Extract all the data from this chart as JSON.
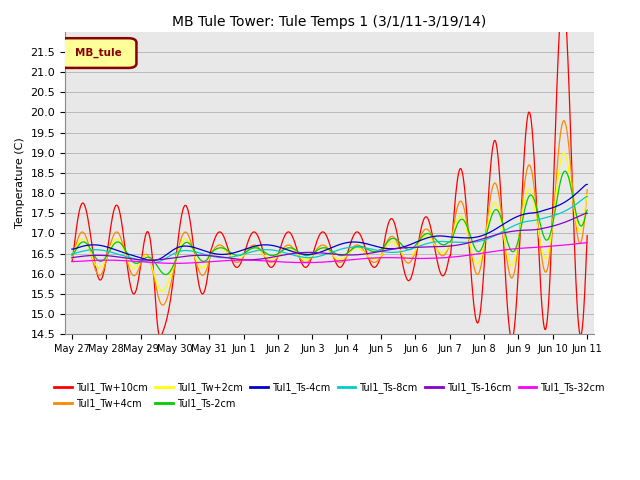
{
  "title": "MB Tule Tower: Tule Temps 1 (3/1/11-3/19/14)",
  "ylabel": "Temperature (C)",
  "ylim": [
    14.5,
    22.0
  ],
  "yticks": [
    14.5,
    15.0,
    15.5,
    16.0,
    16.5,
    17.0,
    17.5,
    18.0,
    18.5,
    19.0,
    19.5,
    20.0,
    20.5,
    21.0,
    21.5
  ],
  "legend_box_label": "MB_tule",
  "legend_box_color": "#880000",
  "legend_box_bg": "#ffff99",
  "xtick_labels": [
    "May 27",
    "May 28",
    "May 29",
    "May 30",
    "May 31",
    "Jun 1",
    "Jun 2",
    "Jun 3",
    "Jun 4",
    "Jun 5",
    "Jun 6",
    "Jun 7",
    "Jun 8",
    "Jun 9",
    "Jun 10",
    "Jun 11"
  ],
  "series": [
    {
      "label": "Tul1_Tw+10cm",
      "color": "#ff0000"
    },
    {
      "label": "Tul1_Tw+4cm",
      "color": "#ff8800"
    },
    {
      "label": "Tul1_Tw+2cm",
      "color": "#ffff00"
    },
    {
      "label": "Tul1_Ts-2cm",
      "color": "#00cc00"
    },
    {
      "label": "Tul1_Ts-4cm",
      "color": "#0000cc"
    },
    {
      "label": "Tul1_Ts-8cm",
      "color": "#00cccc"
    },
    {
      "label": "Tul1_Ts-16cm",
      "color": "#8800cc"
    },
    {
      "label": "Tul1_Ts-32cm",
      "color": "#ff00ff"
    }
  ],
  "bg_plot": "#e8e8e8",
  "bg_fig": "#ffffff",
  "grid_color": "#bbbbbb"
}
